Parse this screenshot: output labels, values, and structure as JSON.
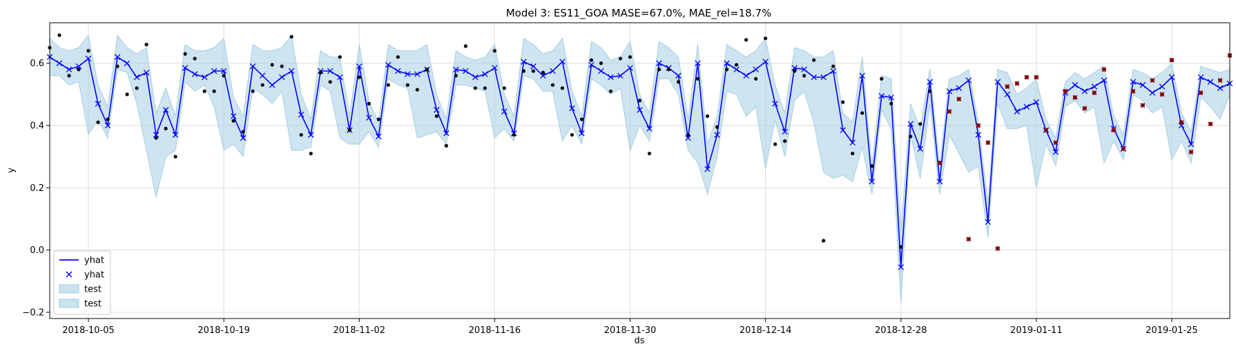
{
  "chart_data": {
    "type": "line",
    "title": "Model 3: ES11_GOA MASE=67.0%, MAE_rel=18.7%",
    "xlabel": "ds",
    "ylabel": "y",
    "x_start": "2018-10-01",
    "x_end": "2019-01-31",
    "ylim": [
      -0.22,
      0.73
    ],
    "grid": true,
    "legend_position": "lower-left",
    "x_ticks": [
      {
        "date": "2018-10-05",
        "label": "2018-10-05"
      },
      {
        "date": "2018-10-19",
        "label": "2018-10-19"
      },
      {
        "date": "2018-11-02",
        "label": "2018-11-02"
      },
      {
        "date": "2018-11-16",
        "label": "2018-11-16"
      },
      {
        "date": "2018-11-30",
        "label": "2018-11-30"
      },
      {
        "date": "2018-12-14",
        "label": "2018-12-14"
      },
      {
        "date": "2018-12-28",
        "label": "2018-12-28"
      },
      {
        "date": "2019-01-11",
        "label": "2019-01-11"
      },
      {
        "date": "2019-01-25",
        "label": "2019-01-25"
      }
    ],
    "y_ticks": [
      -0.2,
      0.0,
      0.2,
      0.4,
      0.6
    ],
    "y_tick_labels": [
      "−0.2",
      "0.0",
      "0.2",
      "0.4",
      "0.6"
    ],
    "legend": [
      {
        "label": "yhat",
        "kind": "line"
      },
      {
        "label": "yhat",
        "kind": "marker"
      },
      {
        "label": "test",
        "kind": "band"
      },
      {
        "label": "test",
        "kind": "band"
      }
    ],
    "colors": {
      "yhat": "#0000ff",
      "band": "#a6cee3",
      "actual": "#000000",
      "test_marker": "#e41a1c",
      "grid": "#dddddd"
    },
    "yhat": [
      0.62,
      0.6,
      0.58,
      0.59,
      0.615,
      0.47,
      0.4,
      0.62,
      0.6,
      0.555,
      0.57,
      0.37,
      0.45,
      0.37,
      0.585,
      0.565,
      0.555,
      0.575,
      0.575,
      0.43,
      0.36,
      0.59,
      0.56,
      0.53,
      0.555,
      0.575,
      0.435,
      0.37,
      0.575,
      0.575,
      0.555,
      0.385,
      0.59,
      0.425,
      0.365,
      0.595,
      0.575,
      0.565,
      0.565,
      0.58,
      0.45,
      0.375,
      0.58,
      0.575,
      0.555,
      0.565,
      0.585,
      0.445,
      0.375,
      0.605,
      0.59,
      0.56,
      0.575,
      0.605,
      0.455,
      0.375,
      0.595,
      0.575,
      0.555,
      0.56,
      0.585,
      0.45,
      0.39,
      0.6,
      0.585,
      0.56,
      0.36,
      0.6,
      0.26,
      0.37,
      0.6,
      0.58,
      0.56,
      0.58,
      0.605,
      0.47,
      0.38,
      0.585,
      0.58,
      0.555,
      0.555,
      0.575,
      0.385,
      0.345,
      0.56,
      0.22,
      0.495,
      0.49,
      -0.055,
      0.405,
      0.325,
      0.54,
      0.22,
      0.51,
      0.52,
      0.545,
      0.37,
      0.09,
      0.54,
      0.5,
      0.445,
      0.46,
      0.475,
      0.385,
      0.315,
      0.505,
      0.53,
      0.51,
      0.525,
      0.545,
      0.39,
      0.325,
      0.54,
      0.53,
      0.505,
      0.525,
      0.555,
      0.4,
      0.34,
      0.555,
      0.54,
      0.52,
      0.535
    ],
    "yhat_lower": [
      0.56,
      0.56,
      0.53,
      0.54,
      0.37,
      0.42,
      0.36,
      0.58,
      0.57,
      0.47,
      0.32,
      0.17,
      0.3,
      0.32,
      0.54,
      0.51,
      0.53,
      0.46,
      0.32,
      0.34,
      0.3,
      0.52,
      0.5,
      0.47,
      0.51,
      0.32,
      0.32,
      0.33,
      0.53,
      0.51,
      0.36,
      0.34,
      0.34,
      0.38,
      0.33,
      0.55,
      0.53,
      0.52,
      0.36,
      0.37,
      0.38,
      0.34,
      0.53,
      0.53,
      0.52,
      0.51,
      0.36,
      0.39,
      0.35,
      0.56,
      0.55,
      0.51,
      0.51,
      0.35,
      0.4,
      0.34,
      0.55,
      0.53,
      0.5,
      0.52,
      0.32,
      0.4,
      0.35,
      0.55,
      0.55,
      0.5,
      0.32,
      0.28,
      0.18,
      0.3,
      0.51,
      0.5,
      0.43,
      0.46,
      0.26,
      0.42,
      0.3,
      0.48,
      0.51,
      0.41,
      0.25,
      0.23,
      0.24,
      0.22,
      0.33,
      0.18,
      0.45,
      0.39,
      -0.17,
      0.37,
      0.23,
      0.47,
      0.18,
      0.37,
      0.31,
      0.25,
      0.27,
      0.04,
      0.47,
      0.39,
      0.39,
      0.4,
      0.2,
      0.34,
      0.27,
      0.46,
      0.48,
      0.44,
      0.46,
      0.28,
      0.35,
      0.29,
      0.5,
      0.48,
      0.44,
      0.46,
      0.29,
      0.35,
      0.28,
      0.49,
      0.46,
      0.42,
      0.5
    ],
    "yhat_upper": [
      0.68,
      0.65,
      0.64,
      0.65,
      0.69,
      0.53,
      0.46,
      0.69,
      0.65,
      0.63,
      0.65,
      0.44,
      0.52,
      0.43,
      0.66,
      0.64,
      0.64,
      0.65,
      0.68,
      0.49,
      0.43,
      0.66,
      0.64,
      0.64,
      0.65,
      0.69,
      0.5,
      0.42,
      0.64,
      0.62,
      0.62,
      0.43,
      0.66,
      0.48,
      0.41,
      0.66,
      0.64,
      0.64,
      0.64,
      0.66,
      0.5,
      0.42,
      0.64,
      0.62,
      0.61,
      0.62,
      0.66,
      0.5,
      0.43,
      0.68,
      0.66,
      0.63,
      0.64,
      0.68,
      0.51,
      0.43,
      0.67,
      0.65,
      0.61,
      0.62,
      0.67,
      0.5,
      0.44,
      0.67,
      0.65,
      0.62,
      0.42,
      0.66,
      0.34,
      0.43,
      0.66,
      0.64,
      0.62,
      0.64,
      0.68,
      0.53,
      0.44,
      0.65,
      0.64,
      0.62,
      0.62,
      0.64,
      0.44,
      0.41,
      0.62,
      0.27,
      0.56,
      0.55,
      0.06,
      0.47,
      0.39,
      0.58,
      0.27,
      0.55,
      0.56,
      0.58,
      0.41,
      0.15,
      0.58,
      0.57,
      0.5,
      0.52,
      0.55,
      0.42,
      0.36,
      0.54,
      0.57,
      0.55,
      0.57,
      0.59,
      0.43,
      0.37,
      0.58,
      0.57,
      0.55,
      0.57,
      0.6,
      0.44,
      0.38,
      0.59,
      0.58,
      0.57,
      0.58
    ],
    "actual": [
      0.65,
      0.69,
      0.56,
      0.58,
      0.64,
      0.41,
      0.42,
      0.59,
      0.5,
      0.52,
      0.66,
      0.36,
      0.39,
      0.3,
      0.63,
      0.615,
      0.51,
      0.51,
      0.56,
      0.415,
      0.38,
      0.51,
      0.53,
      0.595,
      0.59,
      0.685,
      0.37,
      0.31,
      0.57,
      0.54,
      0.62,
      0.385,
      0.555,
      0.47,
      0.42,
      0.53,
      0.62,
      0.53,
      0.515,
      0.58,
      0.43,
      0.335,
      0.56,
      0.655,
      0.52,
      0.52,
      0.64,
      0.52,
      0.37,
      0.575,
      0.575,
      0.57,
      0.53,
      0.52,
      0.37,
      0.42,
      0.61,
      0.6,
      0.51,
      0.615,
      0.62,
      0.48,
      0.31,
      0.58,
      0.58,
      0.54,
      0.37,
      0.55,
      0.43,
      0.395,
      0.58,
      0.595,
      0.675,
      0.55,
      0.68,
      0.34,
      0.35,
      0.575,
      0.56,
      0.61,
      0.03,
      0.59,
      0.475,
      0.31,
      0.44,
      0.27,
      0.55,
      0.47,
      0.01,
      0.365,
      0.405,
      0.51
    ],
    "test": [
      0.28,
      0.445,
      0.485,
      0.035,
      0.4,
      0.345,
      0.005,
      0.525,
      0.535,
      0.555,
      0.555,
      0.385,
      0.345,
      0.51,
      0.49,
      0.455,
      0.505,
      0.58,
      0.385,
      0.325,
      0.51,
      0.465,
      0.545,
      0.5,
      0.61,
      0.41,
      0.315,
      0.505,
      0.405,
      0.545,
      0.625
    ]
  }
}
